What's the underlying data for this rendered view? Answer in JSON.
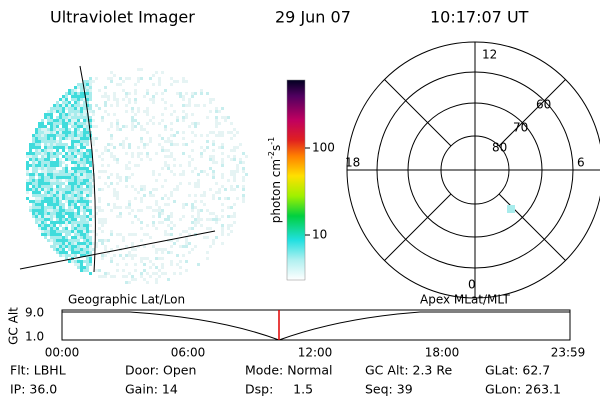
{
  "header": {
    "instrument": "Ultraviolet Imager",
    "date": "29 Jun 07",
    "time": "10:17:07 UT"
  },
  "colorbar": {
    "label": {
      "text": "photon cm",
      "sup1": "-2",
      "text2": "s",
      "sup2": "-1"
    },
    "ticks": [
      "100",
      "10"
    ]
  },
  "polar": {
    "mlt_labels": [
      "12",
      "18",
      "6",
      "0"
    ],
    "lat_labels": [
      "60",
      "70",
      "80"
    ]
  },
  "timeline": {
    "left_label": "Geographic Lat/Lon",
    "right_label": "Apex MLat/MLT",
    "y_label": "GC Alt",
    "y_ticks": [
      "9.0",
      "1.0"
    ],
    "x_ticks": [
      "00:00",
      "06:00",
      "12:00",
      "18:00",
      "23:59"
    ]
  },
  "info": {
    "rows": [
      [
        "Flt: LBHL",
        "Door: Open",
        "Mode: Normal",
        "GC Alt: 2.3 Re",
        "GLat: 62.7"
      ],
      [
        "IP: 36.0",
        "Gain: 14",
        "Dsp:     1.5",
        "Seq: 39",
        "GLon: 263.1"
      ]
    ]
  }
}
